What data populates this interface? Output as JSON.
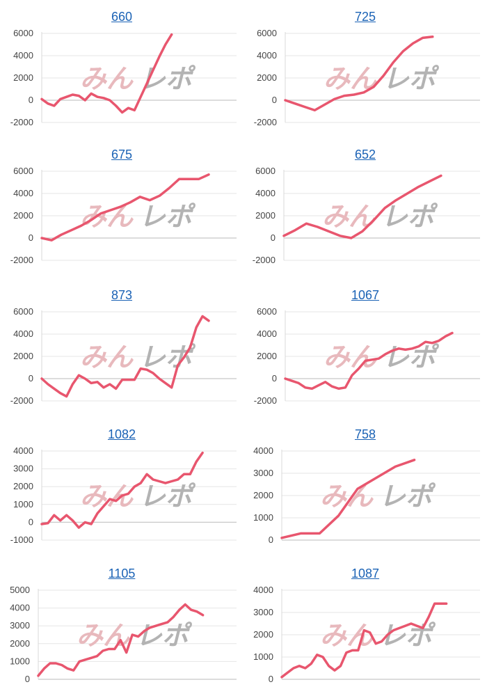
{
  "charts": [
    {
      "title": "660",
      "color": "#e8566e",
      "chart_data": {
        "type": "line",
        "ylim": [
          -2000,
          6000
        ],
        "yticks": [
          -2000,
          0,
          2000,
          4000,
          6000
        ],
        "x": [
          0,
          3,
          6,
          9,
          12,
          15,
          18,
          21,
          24,
          27,
          30,
          33,
          36,
          39,
          42,
          45,
          48,
          51,
          54,
          57,
          60,
          63,
          66,
          69,
          72,
          75,
          78,
          81
        ],
        "values": [
          100,
          -300,
          -500,
          100,
          300,
          500,
          400,
          0,
          600,
          300,
          200,
          0,
          -500,
          -1100,
          -700,
          -900,
          300,
          1500,
          2700,
          3900,
          5000,
          5900,
          null,
          null,
          null,
          null,
          null,
          null
        ]
      }
    },
    {
      "title": "725",
      "color": "#e8566e",
      "chart_data": {
        "type": "line",
        "ylim": [
          -2000,
          6000
        ],
        "yticks": [
          -2000,
          0,
          2000,
          4000,
          6000
        ],
        "x": [
          0,
          3,
          6,
          9,
          12,
          15,
          18,
          21,
          24,
          27,
          30,
          33,
          36,
          39,
          42,
          45,
          48,
          51
        ],
        "values": [
          0,
          -300,
          -600,
          -900,
          -400,
          100,
          400,
          500,
          700,
          1200,
          2200,
          3400,
          4400,
          5100,
          5600,
          5700,
          null,
          null
        ]
      }
    },
    {
      "title": "675",
      "color": "#e8566e",
      "chart_data": {
        "type": "line",
        "ylim": [
          -2000,
          6000
        ],
        "yticks": [
          -2000,
          0,
          2000,
          4000,
          6000
        ],
        "x": [
          0,
          3,
          6,
          9,
          12,
          15,
          18,
          21,
          24,
          27,
          30,
          33,
          36,
          39,
          42,
          45,
          48,
          51
        ],
        "values": [
          0,
          -200,
          300,
          700,
          1100,
          1600,
          2200,
          2500,
          2800,
          3200,
          3700,
          3400,
          3800,
          4500,
          5300,
          5300,
          5300,
          5700
        ]
      }
    },
    {
      "title": "652",
      "color": "#e8566e",
      "chart_data": {
        "type": "line",
        "ylim": [
          -2000,
          6000
        ],
        "yticks": [
          -2000,
          0,
          2000,
          4000,
          6000
        ],
        "x": [
          0,
          3,
          6,
          9,
          12,
          15,
          18,
          21,
          24,
          27,
          30,
          33,
          36,
          39,
          42,
          45
        ],
        "values": [
          200,
          700,
          1300,
          1000,
          600,
          200,
          0,
          600,
          1600,
          2700,
          3400,
          4000,
          4600,
          5100,
          5600,
          null
        ]
      }
    },
    {
      "title": "873",
      "color": "#e8566e",
      "chart_data": {
        "type": "line",
        "ylim": [
          -2000,
          6000
        ],
        "yticks": [
          -2000,
          0,
          2000,
          4000,
          6000
        ],
        "x": [
          0,
          3,
          6,
          9,
          12,
          15,
          18,
          21,
          24,
          27,
          30,
          33,
          36,
          39,
          42,
          45,
          48,
          51,
          54,
          57,
          60,
          63,
          66,
          69,
          72,
          75,
          78,
          81
        ],
        "values": [
          0,
          -500,
          -900,
          -1300,
          -1600,
          -500,
          300,
          0,
          -400,
          -300,
          -800,
          -500,
          -900,
          -100,
          -100,
          -100,
          900,
          800,
          500,
          0,
          -400,
          -800,
          1200,
          1900,
          2800,
          4600,
          5600,
          5200
        ]
      }
    },
    {
      "title": "1067",
      "color": "#e8566e",
      "chart_data": {
        "type": "line",
        "ylim": [
          -2000,
          6000
        ],
        "yticks": [
          -2000,
          0,
          2000,
          4000,
          6000
        ],
        "x": [
          0,
          3,
          6,
          9,
          12,
          15,
          18,
          21,
          24,
          27,
          30,
          33,
          36,
          39,
          42,
          45,
          48,
          51,
          54,
          57,
          60,
          63,
          66,
          69,
          72,
          75
        ],
        "values": [
          0,
          -200,
          -400,
          -800,
          -900,
          -600,
          -300,
          -700,
          -900,
          -800,
          300,
          900,
          1600,
          1700,
          1800,
          2200,
          2500,
          2700,
          2600,
          2700,
          2900,
          3300,
          3200,
          3400,
          3800,
          4100
        ]
      }
    },
    {
      "title": "1082",
      "color": "#e8566e",
      "chart_data": {
        "type": "line",
        "ylim": [
          -1000,
          4000
        ],
        "yticks": [
          -1000,
          0,
          1000,
          2000,
          3000,
          4000
        ],
        "x": [
          0,
          3,
          6,
          9,
          12,
          15,
          18,
          21,
          24,
          27,
          30,
          33,
          36,
          39,
          42,
          45,
          48,
          51,
          54,
          57,
          60,
          63,
          66,
          69,
          72,
          75,
          78,
          81
        ],
        "values": [
          -100,
          -50,
          400,
          100,
          400,
          100,
          -300,
          0,
          -100,
          500,
          900,
          1300,
          1200,
          1500,
          1600,
          2000,
          2200,
          2700,
          2400,
          2300,
          2200,
          2300,
          2400,
          2700,
          2700,
          3400,
          3900,
          null
        ]
      }
    },
    {
      "title": "758",
      "color": "#e8566e",
      "chart_data": {
        "type": "line",
        "ylim": [
          0,
          4000
        ],
        "yticks": [
          0,
          1000,
          2000,
          3000,
          4000
        ],
        "x": [
          0,
          3,
          6,
          9,
          12,
          15,
          18,
          21,
          24,
          27
        ],
        "values": [
          100,
          300,
          300,
          1100,
          2300,
          2800,
          3300,
          3600,
          null,
          null
        ]
      }
    },
    {
      "title": "1105",
      "color": "#e8566e",
      "chart_data": {
        "type": "line",
        "ylim": [
          0,
          5000
        ],
        "yticks": [
          0,
          1000,
          2000,
          3000,
          4000,
          5000
        ],
        "x": [
          0,
          3,
          6,
          9,
          12,
          15,
          18,
          21,
          24,
          27,
          30,
          33,
          36,
          39,
          42,
          45,
          48,
          51,
          54,
          57,
          60,
          63,
          66,
          69,
          72,
          75,
          78,
          81,
          84,
          87
        ],
        "values": [
          200,
          600,
          900,
          900,
          800,
          600,
          500,
          1000,
          1100,
          1200,
          1300,
          1600,
          1700,
          1700,
          2200,
          1500,
          2500,
          2400,
          2700,
          2900,
          3000,
          3100,
          3200,
          3500,
          3900,
          4200,
          3900,
          3800,
          3600,
          null
        ]
      }
    },
    {
      "title": "1087",
      "color": "#e8566e",
      "chart_data": {
        "type": "line",
        "ylim": [
          0,
          4000
        ],
        "yticks": [
          0,
          1000,
          2000,
          3000,
          4000
        ],
        "x": [
          0,
          3,
          6,
          9,
          12,
          15,
          18,
          21,
          24,
          27,
          30,
          33,
          36,
          39,
          42,
          45,
          48,
          51,
          54,
          57,
          60,
          63,
          66,
          69,
          72,
          75,
          78,
          81,
          84,
          87
        ],
        "values": [
          100,
          300,
          500,
          600,
          500,
          700,
          1100,
          1000,
          600,
          400,
          600,
          1200,
          1300,
          1300,
          2200,
          2100,
          1600,
          1700,
          2000,
          2200,
          2300,
          2400,
          2500,
          2400,
          2300,
          2800,
          3400,
          3400,
          3400,
          null
        ]
      }
    }
  ],
  "watermark": {
    "part_a": "みん",
    "part_b": "レポ"
  }
}
